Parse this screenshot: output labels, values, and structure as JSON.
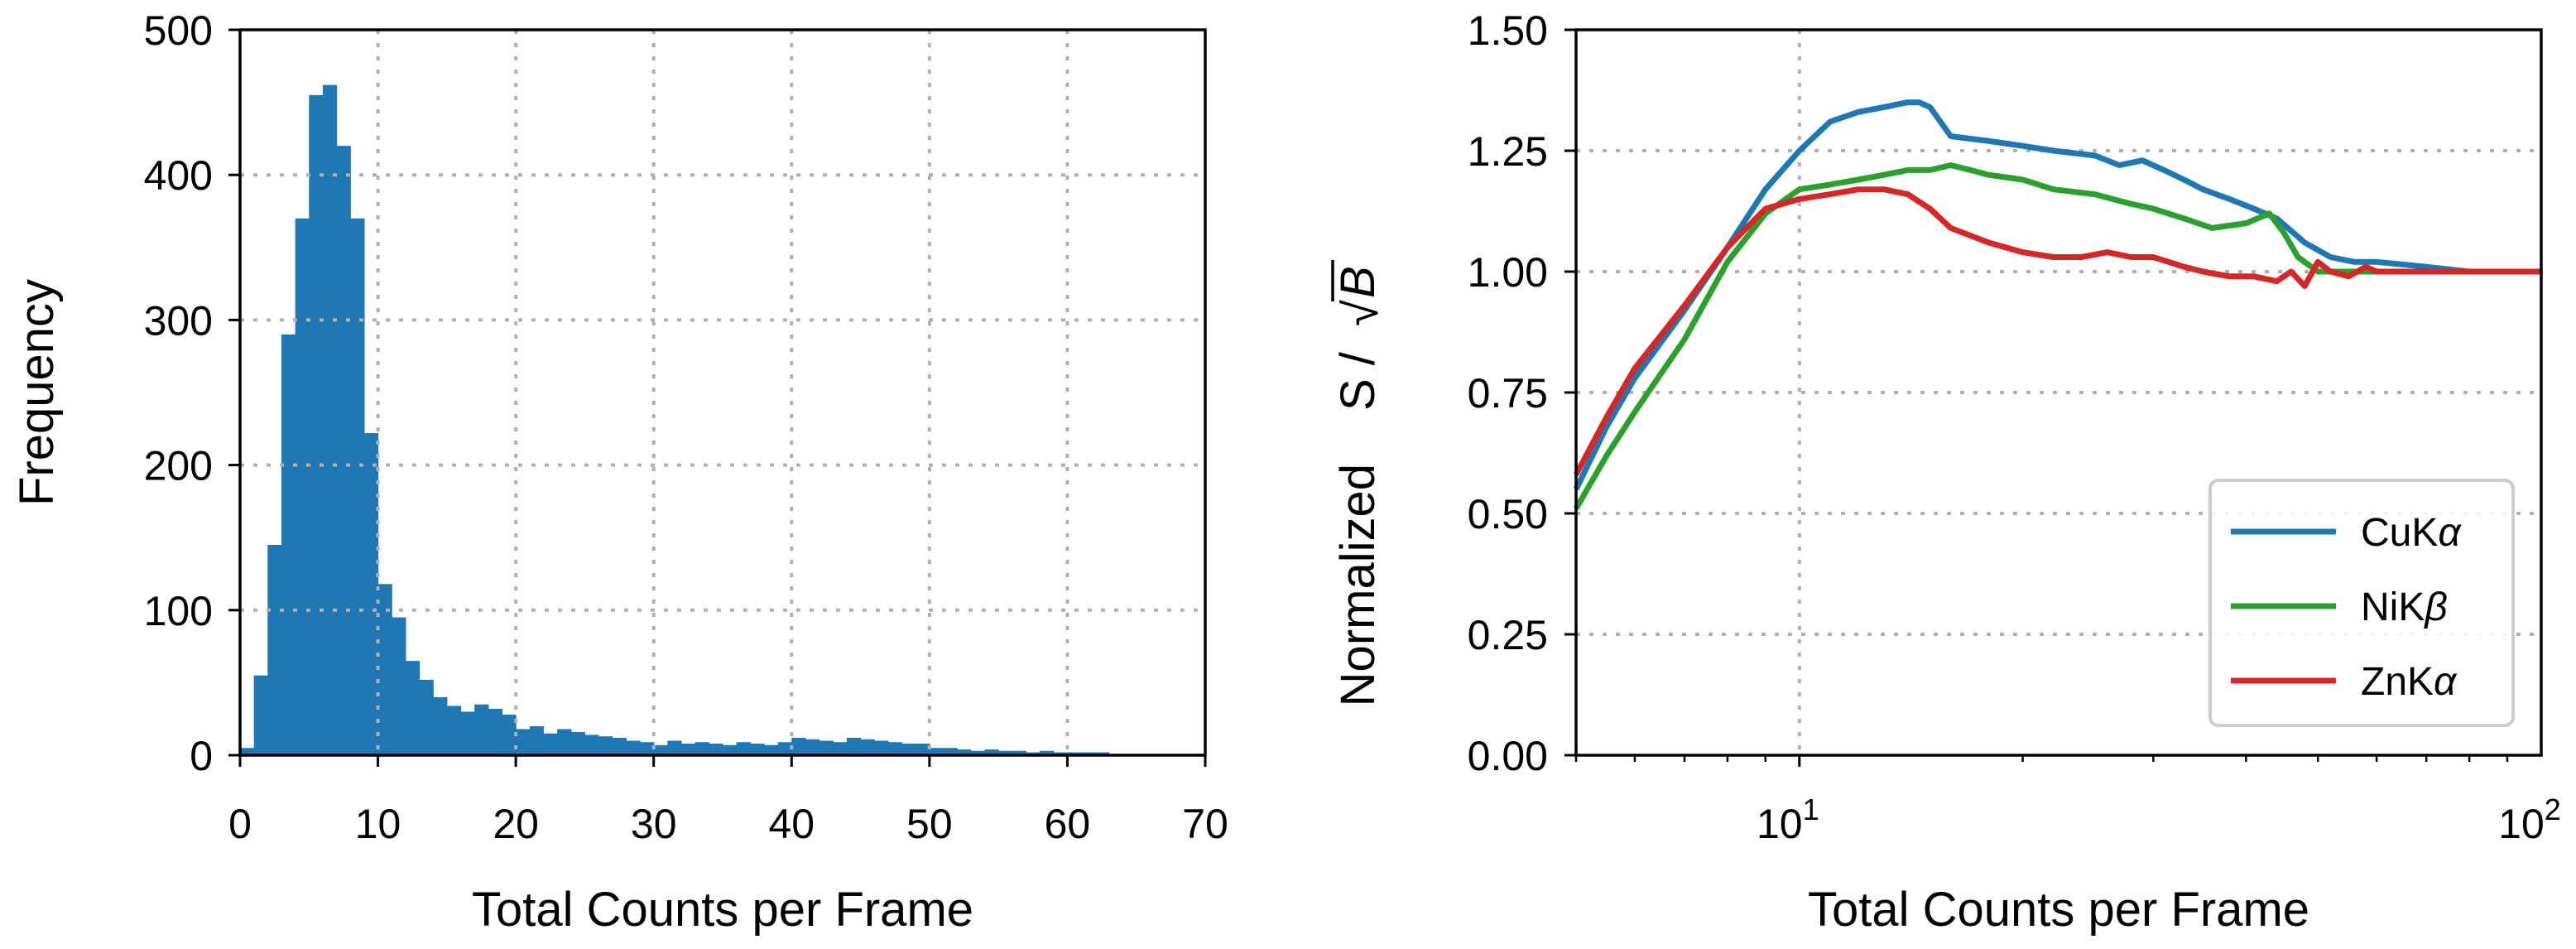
{
  "chart_data": [
    {
      "type": "bar",
      "title": "",
      "xlabel": "Total Counts per Frame",
      "ylabel": "Frequency",
      "xlim": [
        0,
        70
      ],
      "ylim": [
        0,
        500
      ],
      "xticks": [
        0,
        10,
        20,
        30,
        40,
        50,
        60,
        70
      ],
      "yticks": [
        0,
        100,
        200,
        300,
        400,
        500
      ],
      "grid": true,
      "bin_width": 1,
      "bin_start": 0,
      "color": "#1f77b4",
      "values": [
        5,
        55,
        145,
        290,
        370,
        455,
        462,
        420,
        370,
        222,
        118,
        95,
        65,
        52,
        40,
        34,
        30,
        35,
        32,
        28,
        18,
        20,
        15,
        18,
        16,
        14,
        13,
        12,
        10,
        9,
        7,
        10,
        8,
        9,
        8,
        7,
        9,
        8,
        7,
        9,
        12,
        11,
        10,
        9,
        12,
        11,
        10,
        9,
        8,
        8,
        5,
        5,
        4,
        3,
        4,
        3,
        3,
        2,
        3,
        2,
        2,
        2,
        2,
        1,
        1,
        1,
        1,
        1,
        1,
        1
      ]
    },
    {
      "type": "line",
      "title": "",
      "xlabel": "Total Counts per Frame",
      "ylabel_prefix": "Normalized",
      "ylabel_expr": "S /",
      "ylabel_sqrt": "B",
      "xscale": "log",
      "xlim": [
        5,
        100
      ],
      "ylim": [
        0,
        1.5
      ],
      "xtick_labels": [
        {
          "value": 10,
          "base": "10",
          "exp": "1"
        },
        {
          "value": 100,
          "base": "10",
          "exp": "2"
        }
      ],
      "yticks": [
        0.0,
        0.25,
        0.5,
        0.75,
        1.0,
        1.25,
        1.5
      ],
      "ytick_labels": [
        "0.00",
        "0.25",
        "0.50",
        "0.75",
        "1.00",
        "1.25",
        "1.50"
      ],
      "grid": true,
      "legend": "lower-right",
      "series": [
        {
          "name_base": "CuK",
          "name_greek": "α",
          "color": "#1f77b4",
          "x": [
            5,
            5.5,
            6,
            7,
            8,
            9,
            10,
            11,
            12,
            13,
            14,
            14.5,
            15,
            16,
            18,
            20,
            22,
            25,
            27,
            29,
            31,
            33,
            35,
            38,
            41,
            44,
            48,
            52,
            56,
            60,
            70,
            80,
            90,
            100
          ],
          "y": [
            0.55,
            0.68,
            0.78,
            0.92,
            1.05,
            1.17,
            1.25,
            1.31,
            1.33,
            1.34,
            1.35,
            1.35,
            1.34,
            1.28,
            1.27,
            1.26,
            1.25,
            1.24,
            1.22,
            1.23,
            1.21,
            1.19,
            1.17,
            1.15,
            1.13,
            1.11,
            1.06,
            1.03,
            1.02,
            1.02,
            1.01,
            1.0,
            1.0,
            1.0
          ]
        },
        {
          "name_base": "NiK",
          "name_greek": "β",
          "color": "#2ca02c",
          "x": [
            5,
            5.5,
            6,
            7,
            8,
            9,
            10,
            11,
            12,
            13,
            14,
            15,
            16,
            17,
            18,
            20,
            22,
            25,
            28,
            30,
            33,
            36,
            40,
            43,
            45,
            47,
            50,
            55,
            60,
            70,
            80,
            90,
            100
          ],
          "y": [
            0.51,
            0.62,
            0.71,
            0.86,
            1.02,
            1.12,
            1.17,
            1.18,
            1.19,
            1.2,
            1.21,
            1.21,
            1.22,
            1.21,
            1.2,
            1.19,
            1.17,
            1.16,
            1.14,
            1.13,
            1.11,
            1.09,
            1.1,
            1.12,
            1.08,
            1.03,
            1.0,
            1.0,
            1.0,
            1.0,
            1.0,
            1.0,
            1.0
          ]
        },
        {
          "name_base": "ZnK",
          "name_greek": "α",
          "color": "#d62728",
          "x": [
            5,
            5.5,
            6,
            7,
            8,
            9,
            10,
            11,
            12,
            13,
            14,
            15,
            16,
            18,
            20,
            22,
            24,
            26,
            28,
            30,
            33,
            35,
            38,
            41,
            44,
            46,
            48,
            50,
            52,
            55,
            58,
            60,
            70,
            80,
            90,
            100
          ],
          "y": [
            0.58,
            0.7,
            0.8,
            0.93,
            1.05,
            1.13,
            1.15,
            1.16,
            1.17,
            1.17,
            1.16,
            1.13,
            1.09,
            1.06,
            1.04,
            1.03,
            1.03,
            1.04,
            1.03,
            1.03,
            1.01,
            1.0,
            0.99,
            0.99,
            0.98,
            1.0,
            0.97,
            1.02,
            1.0,
            0.99,
            1.01,
            1.0,
            1.0,
            1.0,
            1.0,
            1.0
          ]
        }
      ]
    }
  ]
}
